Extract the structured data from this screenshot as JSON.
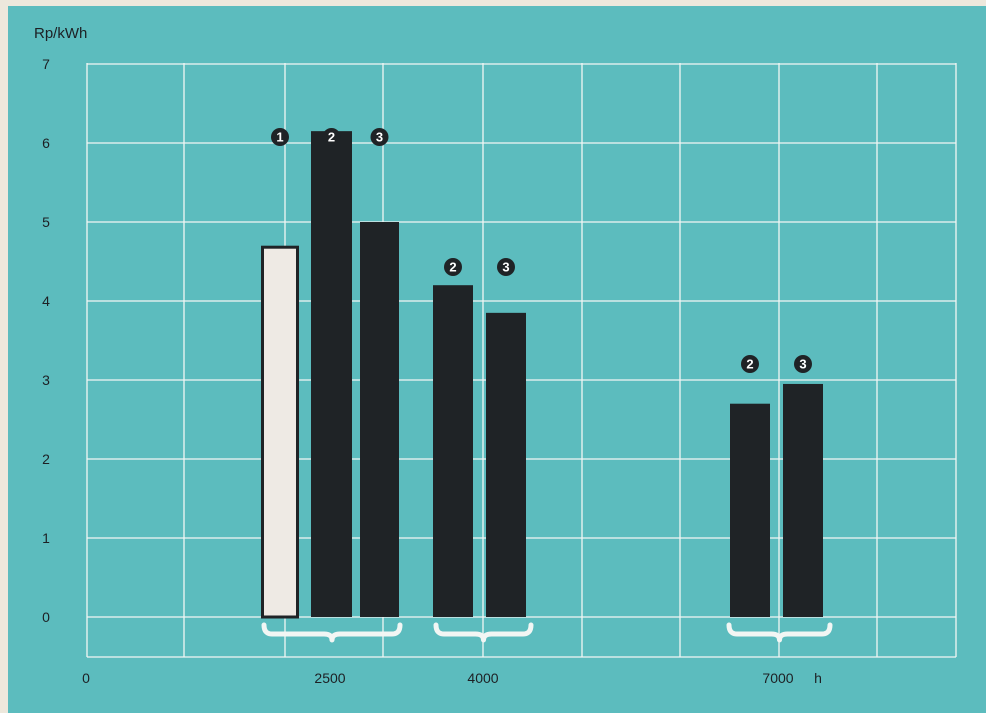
{
  "colors": {
    "background": "#5cbcbe",
    "paper": "#ede8dc",
    "grid": "#f2f6f4",
    "bar_dark": "#1f2326",
    "bar_light": "#eeeae4",
    "bar_light_border": "#1f2326",
    "brace": "#f2f6f4",
    "text": "#1d2024"
  },
  "chart_data": {
    "type": "bar",
    "ylabel": "Rp/kWh",
    "xunit": "h",
    "ylim": [
      0,
      7
    ],
    "yticks": [
      "0",
      "1",
      "2",
      "3",
      "4",
      "5",
      "6",
      "7"
    ],
    "xticks": [
      "0",
      "2500",
      "4000",
      "7000"
    ],
    "grid": true,
    "groups": [
      {
        "x_label": "2500",
        "bars": [
          {
            "marker": "1",
            "value": 4.7,
            "style": "light"
          },
          {
            "marker": "2",
            "value": 6.15,
            "style": "dark"
          },
          {
            "marker": "3",
            "value": 5.0,
            "style": "dark"
          }
        ]
      },
      {
        "x_label": "4000",
        "bars": [
          {
            "marker": "2",
            "value": 4.2,
            "style": "dark"
          },
          {
            "marker": "3",
            "value": 3.85,
            "style": "dark"
          }
        ]
      },
      {
        "x_label": "7000",
        "bars": [
          {
            "marker": "2",
            "value": 2.7,
            "style": "dark"
          },
          {
            "marker": "3",
            "value": 2.95,
            "style": "dark"
          }
        ]
      }
    ]
  }
}
